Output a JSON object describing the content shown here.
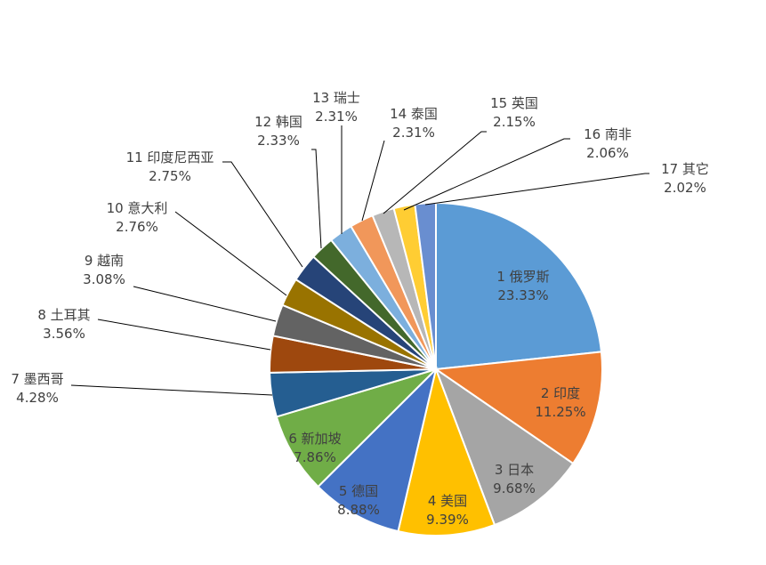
{
  "chart_data": {
    "type": "pie",
    "title": "",
    "start_angle_deg": 0,
    "direction": "clockwise",
    "slices": [
      {
        "name": "1 俄罗斯",
        "value": 23.33,
        "label": "23.33%",
        "color": "#5B9BD5"
      },
      {
        "name": "2 印度",
        "value": 11.25,
        "label": "11.25%",
        "color": "#ED7D31"
      },
      {
        "name": "3 日本",
        "value": 9.68,
        "label": "9.68%",
        "color": "#A5A5A5"
      },
      {
        "name": "4 美国",
        "value": 9.39,
        "label": "9.39%",
        "color": "#FFC000"
      },
      {
        "name": "5 德国",
        "value": 8.88,
        "label": "8.88%",
        "color": "#4472C4"
      },
      {
        "name": "6 新加坡",
        "value": 7.86,
        "label": "7.86%",
        "color": "#70AD47"
      },
      {
        "name": "7 墨西哥",
        "value": 4.28,
        "label": "4.28%",
        "color": "#255E91"
      },
      {
        "name": "8 土耳其",
        "value": 3.56,
        "label": "3.56%",
        "color": "#9E480E"
      },
      {
        "name": "9 越南",
        "value": 3.08,
        "label": "3.08%",
        "color": "#636363"
      },
      {
        "name": "10 意大利",
        "value": 2.76,
        "label": "2.76%",
        "color": "#997300"
      },
      {
        "name": "11 印度尼西亚",
        "value": 2.75,
        "label": "2.75%",
        "color": "#264478"
      },
      {
        "name": "12 韩国",
        "value": 2.33,
        "label": "2.33%",
        "color": "#43682B"
      },
      {
        "name": "13 瑞士",
        "value": 2.31,
        "label": "2.31%",
        "color": "#7CAFDD"
      },
      {
        "name": "14 泰国",
        "value": 2.31,
        "label": "2.31%",
        "color": "#F1975A"
      },
      {
        "name": "15 英国",
        "value": 2.15,
        "label": "2.15%",
        "color": "#B7B7B7"
      },
      {
        "name": "16 南非",
        "value": 2.06,
        "label": "2.06%",
        "color": "#FFCD33"
      },
      {
        "name": "17 其它",
        "value": 2.02,
        "label": "2.02%",
        "color": "#698ED0"
      }
    ]
  }
}
